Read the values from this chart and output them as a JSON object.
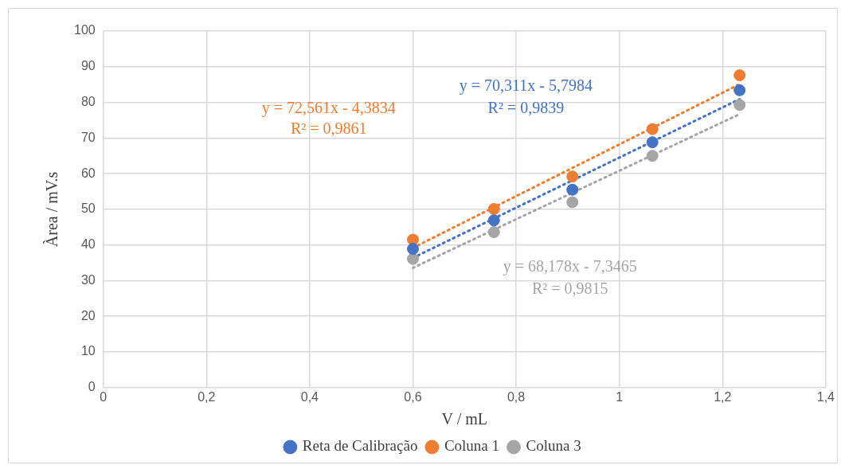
{
  "chart_data": {
    "type": "scatter",
    "xlabel": "V / mL",
    "ylabel": "Àrea / mV.s",
    "xlim": [
      0,
      1.4
    ],
    "xticks": [
      {
        "value": 0,
        "label": "0"
      },
      {
        "value": 0.2,
        "label": "0,2"
      },
      {
        "value": 0.4,
        "label": "0,4"
      },
      {
        "value": 0.6,
        "label": "0,6"
      },
      {
        "value": 0.8,
        "label": "0,8"
      },
      {
        "value": 1,
        "label": "1"
      },
      {
        "value": 1.2,
        "label": "1,2"
      },
      {
        "value": 1.4,
        "label": "1,4"
      }
    ],
    "ylim": [
      0,
      100
    ],
    "yticks": [
      0,
      10,
      20,
      30,
      40,
      50,
      60,
      70,
      80,
      90,
      100
    ],
    "grid": true,
    "legend": "bottom",
    "marker": "circle",
    "series": [
      {
        "name": "Reta de Calibração",
        "color": "#4472c4",
        "x": [
          0.6,
          0.757,
          0.909,
          1.064,
          1.233
        ],
        "values": [
          38.9,
          46.9,
          55.5,
          68.8,
          83.4
        ]
      },
      {
        "name": "Coluna 1",
        "color": "#ed7d31",
        "x": [
          0.6,
          0.757,
          0.909,
          1.064,
          1.233
        ],
        "values": [
          41.5,
          50.1,
          59.2,
          72.5,
          87.6
        ]
      },
      {
        "name": "Coluna 3",
        "color": "#a5a5a5",
        "x": [
          0.6,
          0.757,
          0.909,
          1.064,
          1.233
        ],
        "values": [
          36.1,
          43.6,
          52.0,
          65.0,
          79.3
        ]
      },
      {
        "type": "line",
        "color": "#4472c4",
        "line_style": "dotted",
        "marker": "none",
        "x": [
          0.6,
          1.233
        ],
        "values": [
          36.4,
          80.9
        ]
      },
      {
        "type": "line",
        "color": "#ed7d31",
        "line_style": "dotted",
        "marker": "none",
        "x": [
          0.6,
          1.233
        ],
        "values": [
          39.2,
          85.1
        ]
      },
      {
        "type": "line",
        "color": "#a5a5a5",
        "line_style": "dotted",
        "marker": "none",
        "x": [
          0.6,
          1.233
        ],
        "values": [
          33.6,
          76.7
        ]
      }
    ],
    "annotations": [
      "y = 70,311x - 5,7984",
      "R² = 0,9839",
      "y = 72,561x - 4,3834",
      "R² = 0,9861",
      "y = 68,178x - 7,3465",
      "R² = 0,9815"
    ]
  }
}
